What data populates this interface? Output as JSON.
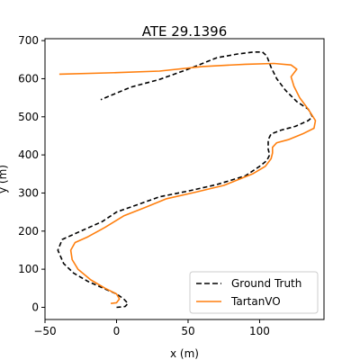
{
  "chart_data": {
    "type": "line",
    "title": "ATE 29.1396",
    "xlabel": "x (m)",
    "ylabel": "y (m)",
    "xlim": [
      -50,
      145
    ],
    "ylim": [
      -32,
      705
    ],
    "x_ticks": [
      -50,
      0,
      50,
      100
    ],
    "y_ticks": [
      0,
      100,
      200,
      300,
      400,
      500,
      600,
      700
    ],
    "grid": false,
    "legend_position": "lower-right",
    "series": [
      {
        "name": "Ground Truth",
        "color": "#000000",
        "style": "dashed",
        "points": [
          [
            0,
            0
          ],
          [
            6,
            2
          ],
          [
            8,
            10
          ],
          [
            5,
            22
          ],
          [
            0,
            35
          ],
          [
            -8,
            48
          ],
          [
            -20,
            68
          ],
          [
            -30,
            90
          ],
          [
            -37,
            115
          ],
          [
            -41,
            150
          ],
          [
            -38,
            178
          ],
          [
            -25,
            200
          ],
          [
            -10,
            225
          ],
          [
            0,
            250
          ],
          [
            15,
            270
          ],
          [
            30,
            290
          ],
          [
            50,
            305
          ],
          [
            70,
            322
          ],
          [
            90,
            345
          ],
          [
            100,
            370
          ],
          [
            105,
            385
          ],
          [
            107,
            400
          ],
          [
            106,
            415
          ],
          [
            106,
            440
          ],
          [
            108,
            455
          ],
          [
            115,
            465
          ],
          [
            125,
            475
          ],
          [
            134,
            490
          ],
          [
            137,
            500
          ],
          [
            134,
            520
          ],
          [
            126,
            540
          ],
          [
            118,
            570
          ],
          [
            112,
            600
          ],
          [
            108,
            630
          ],
          [
            105,
            660
          ],
          [
            102,
            670
          ],
          [
            96,
            670
          ],
          [
            85,
            665
          ],
          [
            70,
            655
          ],
          [
            50,
            625
          ],
          [
            30,
            598
          ],
          [
            10,
            578
          ],
          [
            -11,
            545
          ]
        ]
      },
      {
        "name": "TartanVO",
        "color": "#ff7f0e",
        "style": "solid",
        "points": [
          [
            -4,
            10
          ],
          [
            0,
            12
          ],
          [
            2,
            22
          ],
          [
            0,
            35
          ],
          [
            -8,
            50
          ],
          [
            -18,
            72
          ],
          [
            -27,
            100
          ],
          [
            -31,
            125
          ],
          [
            -32,
            150
          ],
          [
            -29,
            170
          ],
          [
            -20,
            185
          ],
          [
            -8,
            210
          ],
          [
            5,
            240
          ],
          [
            20,
            262
          ],
          [
            35,
            285
          ],
          [
            55,
            302
          ],
          [
            75,
            320
          ],
          [
            95,
            350
          ],
          [
            104,
            370
          ],
          [
            108,
            390
          ],
          [
            109,
            405
          ],
          [
            109,
            420
          ],
          [
            112,
            432
          ],
          [
            120,
            440
          ],
          [
            130,
            455
          ],
          [
            138,
            470
          ],
          [
            139,
            490
          ],
          [
            134,
            520
          ],
          [
            128,
            550
          ],
          [
            124,
            580
          ],
          [
            122,
            605
          ],
          [
            126,
            625
          ],
          [
            122,
            636
          ],
          [
            110,
            640
          ],
          [
            90,
            638
          ],
          [
            60,
            632
          ],
          [
            30,
            620
          ],
          [
            0,
            616
          ],
          [
            -40,
            612
          ]
        ]
      }
    ]
  }
}
